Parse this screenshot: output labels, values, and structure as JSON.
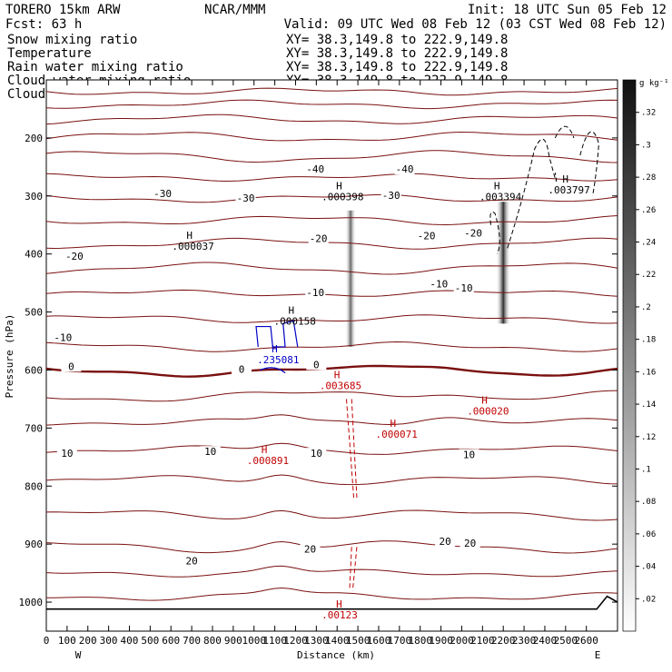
{
  "chart_data": {
    "type": "cross-section",
    "header": {
      "model": "TORERO  15km ARW",
      "org": "NCAR/MMM",
      "init": "Init: 18 UTC Sun 05 Feb 12",
      "fcst": "Fcst:   63 h",
      "valid": "Valid: 09 UTC Wed 08 Feb 12 (03 CST Wed 08 Feb 12)"
    },
    "legend": [
      {
        "name": "Snow mixing ratio",
        "color": "#000000"
      },
      {
        "name": "Temperature",
        "color": "#c00000"
      },
      {
        "name": "Rain water mixing ratio",
        "color": "#c00000"
      },
      {
        "name": "Cloud water mixing ratio",
        "color": "#0000c8"
      },
      {
        "name": "Cloud ice mixing ratio",
        "color": "#000000"
      }
    ],
    "xy_label": "XY=  38.3,149.8 to 222.9,149.8",
    "xaxis": {
      "label": "Distance (km)",
      "range": [
        0,
        2750
      ],
      "ticks": [
        0,
        100,
        200,
        300,
        400,
        500,
        600,
        700,
        800,
        900,
        1000,
        1100,
        1200,
        1300,
        1400,
        1500,
        1600,
        1700,
        1800,
        1900,
        2000,
        2100,
        2200,
        2300,
        2400,
        2500,
        2600
      ],
      "tick_labels": [
        "0",
        "100",
        "200",
        "300",
        "400",
        "500",
        "600",
        "700",
        "800",
        "900",
        "1000",
        "1100",
        "1200",
        "1300",
        "1400",
        "1500",
        "1600",
        "1700",
        "1800",
        "1900",
        "2000",
        "2100",
        "2200",
        "2300",
        "2400",
        "2500",
        "2600"
      ],
      "left_end": "W",
      "right_end": "E"
    },
    "yaxis": {
      "label": "Pressure (hPa)",
      "range": [
        1050,
        100
      ],
      "ticks": [
        200,
        300,
        400,
        500,
        600,
        700,
        800,
        900,
        1000
      ],
      "tick_labels": [
        "200",
        "300",
        "400",
        "500",
        "600",
        "700",
        "800",
        "900",
        "1000"
      ]
    },
    "colorbar": {
      "units": "g kg⁻¹",
      "min": 0.0,
      "max": 0.34,
      "ticks": [
        0.02,
        0.04,
        0.06,
        0.08,
        0.1,
        0.12,
        0.14,
        0.16,
        0.18,
        0.2,
        0.22,
        0.24,
        0.26,
        0.28,
        0.3,
        0.32
      ],
      "tick_labels": [
        ".02",
        ".04",
        ".06",
        ".08",
        ".1",
        ".12",
        ".14",
        ".16",
        ".18",
        ".2",
        ".22",
        ".24",
        ".26",
        ".28",
        ".3",
        ".32"
      ]
    },
    "temperature_labels": [
      {
        "text": "-40",
        "x": 1295,
        "p": 255
      },
      {
        "text": "-40",
        "x": 1725,
        "p": 255
      },
      {
        "text": "-30",
        "x": 560,
        "p": 297
      },
      {
        "text": "-30",
        "x": 960,
        "p": 305
      },
      {
        "text": "-30",
        "x": 1660,
        "p": 300
      },
      {
        "text": "-20",
        "x": 135,
        "p": 405
      },
      {
        "text": "-20",
        "x": 1310,
        "p": 375
      },
      {
        "text": "-20",
        "x": 1830,
        "p": 370
      },
      {
        "text": "-20",
        "x": 2055,
        "p": 365
      },
      {
        "text": "-10",
        "x": 80,
        "p": 545
      },
      {
        "text": "-10",
        "x": 1295,
        "p": 468
      },
      {
        "text": "-10",
        "x": 1890,
        "p": 453
      },
      {
        "text": "-10",
        "x": 2010,
        "p": 460
      },
      {
        "text": "0",
        "x": 120,
        "p": 595
      },
      {
        "text": "0",
        "x": 940,
        "p": 600
      },
      {
        "text": "0",
        "x": 1300,
        "p": 592
      },
      {
        "text": "10",
        "x": 100,
        "p": 745
      },
      {
        "text": "10",
        "x": 790,
        "p": 742
      },
      {
        "text": "10",
        "x": 1300,
        "p": 745
      },
      {
        "text": "10",
        "x": 2035,
        "p": 747
      },
      {
        "text": "20",
        "x": 700,
        "p": 930
      },
      {
        "text": "20",
        "x": 1270,
        "p": 910
      },
      {
        "text": "20",
        "x": 1920,
        "p": 897
      },
      {
        "text": "20",
        "x": 2040,
        "p": 900
      }
    ],
    "max_labels": [
      {
        "text": ".000037",
        "x": 710,
        "p": 393,
        "color": "#000000"
      },
      {
        "text": ".000398",
        "x": 1430,
        "p": 307,
        "color": "#000000"
      },
      {
        "text": ".003394",
        "x": 2190,
        "p": 307,
        "color": "#000000"
      },
      {
        "text": ".003797",
        "x": 2520,
        "p": 296,
        "color": "#000000"
      },
      {
        "text": ".000158",
        "x": 1200,
        "p": 522,
        "color": "#000000"
      },
      {
        "text": ".235081",
        "x": 1120,
        "p": 588,
        "color": "#0000c8"
      },
      {
        "text": ".003685",
        "x": 1420,
        "p": 633,
        "color": "#c00000"
      },
      {
        "text": ".000020",
        "x": 2130,
        "p": 677,
        "color": "#c00000"
      },
      {
        "text": ".000071",
        "x": 1690,
        "p": 717,
        "color": "#c00000"
      },
      {
        "text": ".000891",
        "x": 1070,
        "p": 762,
        "color": "#c00000"
      },
      {
        "text": ".00123",
        "x": 1430,
        "p": 1028,
        "color": "#c00000"
      }
    ]
  }
}
